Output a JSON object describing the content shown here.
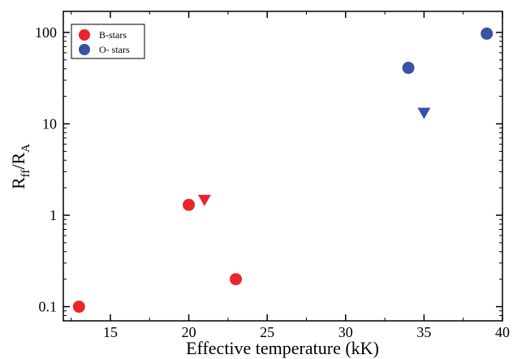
{
  "chart_data": {
    "type": "scatter",
    "xlabel": "Effective temperature (kK)",
    "ylabel": {
      "main": "R",
      "sub1": "ff",
      "mid": "/R",
      "sub2": "A"
    },
    "xlim": [
      12,
      40
    ],
    "ylim": [
      0.07,
      170
    ],
    "yscale": "log",
    "xticks": [
      15,
      20,
      25,
      30,
      35,
      40
    ],
    "yticks": [
      {
        "value": 0.1,
        "label": "0.1"
      },
      {
        "value": 1,
        "label": "1"
      },
      {
        "value": 10,
        "label": "10"
      },
      {
        "value": 100,
        "label": "100"
      }
    ],
    "grid": false,
    "legend_position": "top-left",
    "series": [
      {
        "name": "B-stars",
        "color": "#e8262b",
        "points": [
          {
            "x": 13,
            "y": 0.1,
            "marker": "circle"
          },
          {
            "x": 20,
            "y": 1.3,
            "marker": "circle"
          },
          {
            "x": 21,
            "y": 1.45,
            "marker": "triangle-down"
          },
          {
            "x": 23,
            "y": 0.2,
            "marker": "circle"
          }
        ]
      },
      {
        "name": "O- stars",
        "color": "#3a52a4",
        "points": [
          {
            "x": 34,
            "y": 41,
            "marker": "circle"
          },
          {
            "x": 35,
            "y": 13,
            "marker": "triangle-down"
          },
          {
            "x": 39,
            "y": 97,
            "marker": "circle"
          }
        ]
      }
    ]
  }
}
